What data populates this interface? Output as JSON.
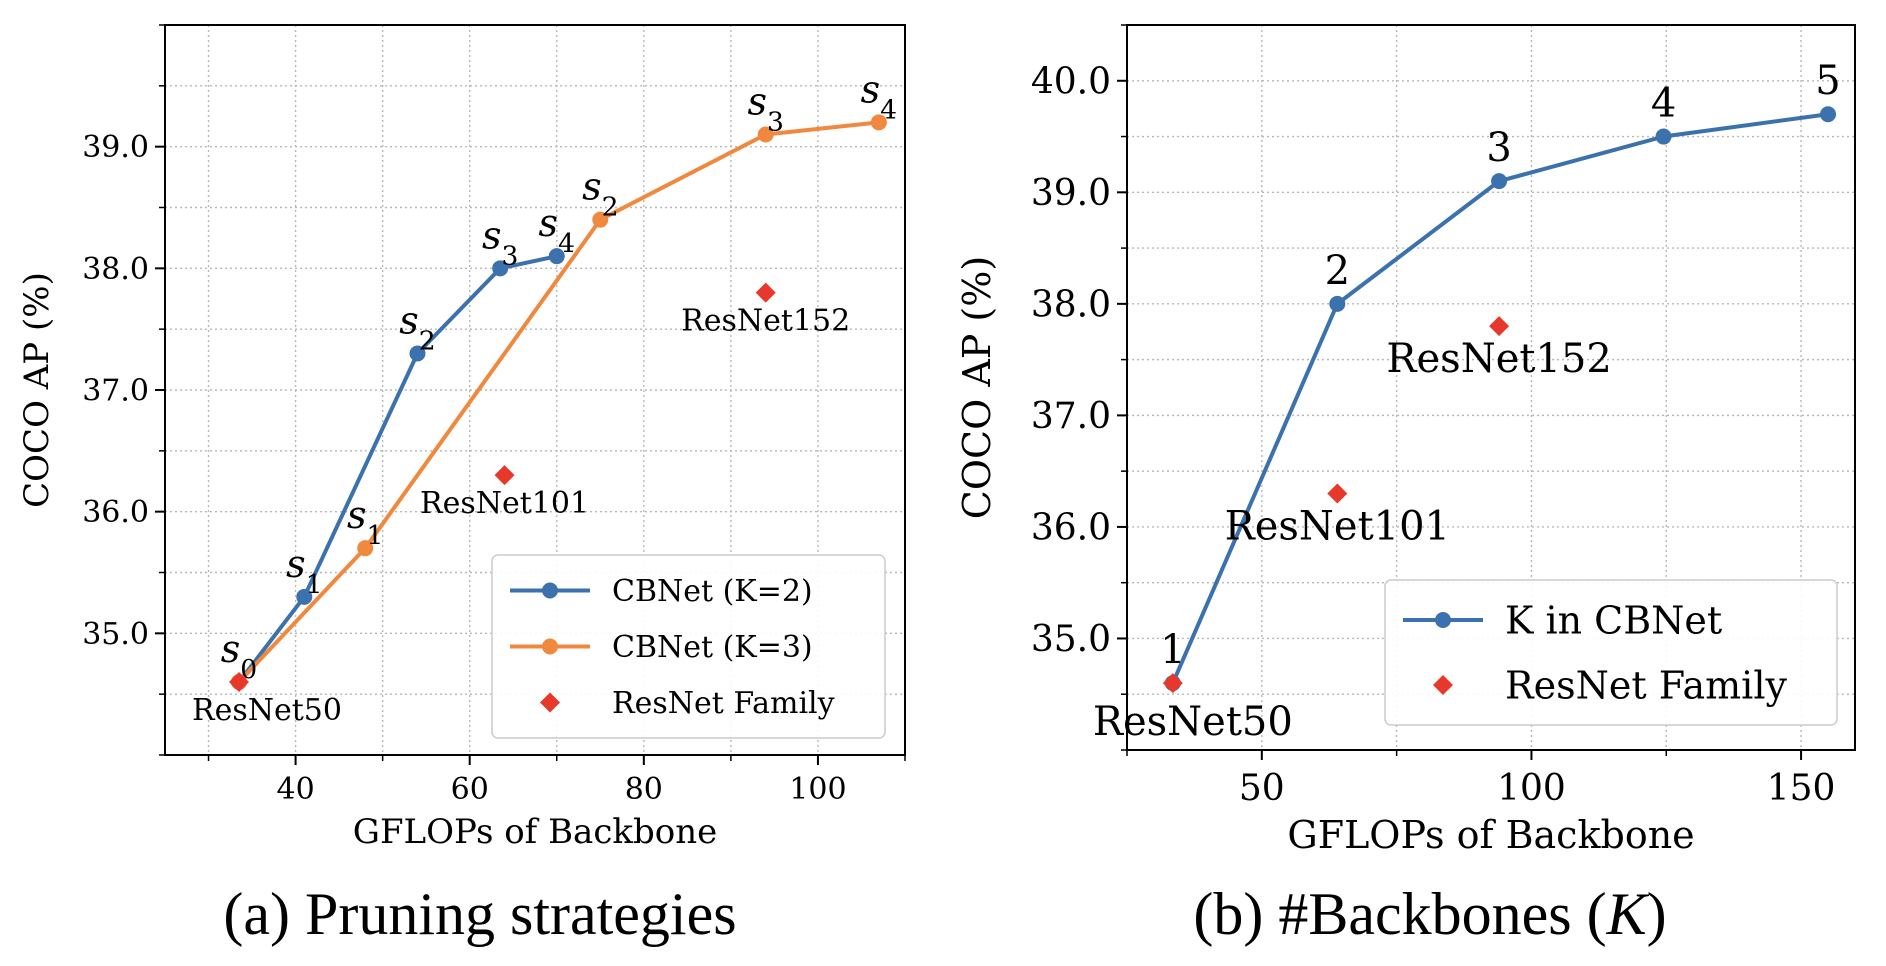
{
  "chart_data": [
    {
      "type": "line",
      "caption": "(a) Pruning strategies",
      "xlabel": "GFLOPs of Backbone",
      "ylabel": "COCO AP (%)",
      "xlim": [
        25,
        110
      ],
      "ylim": [
        34.0,
        40.0
      ],
      "xticks": [
        40,
        60,
        80,
        100
      ],
      "yticks": [
        35.0,
        36.0,
        37.0,
        38.0,
        39.0
      ],
      "grid": true,
      "legend_position": "lower-right",
      "series": [
        {
          "name": "CBNet (K=2)",
          "color": "#3b72ad",
          "marker": "circle",
          "points": [
            {
              "x": 33.5,
              "y": 34.6,
              "label": "s",
              "sub": "0"
            },
            {
              "x": 41,
              "y": 35.3,
              "label": "s",
              "sub": "1"
            },
            {
              "x": 54,
              "y": 37.3,
              "label": "s",
              "sub": "2"
            },
            {
              "x": 63.5,
              "y": 38.0,
              "label": "s",
              "sub": "3"
            },
            {
              "x": 70,
              "y": 38.1,
              "label": "s",
              "sub": "4"
            }
          ]
        },
        {
          "name": "CBNet (K=3)",
          "color": "#f0883e",
          "marker": "circle",
          "points": [
            {
              "x": 33.5,
              "y": 34.6,
              "label": "",
              "sub": ""
            },
            {
              "x": 48,
              "y": 35.7,
              "label": "s",
              "sub": "1"
            },
            {
              "x": 75,
              "y": 38.4,
              "label": "s",
              "sub": "2"
            },
            {
              "x": 94,
              "y": 39.1,
              "label": "s",
              "sub": "3"
            },
            {
              "x": 107,
              "y": 39.2,
              "label": "s",
              "sub": "4"
            }
          ]
        }
      ],
      "scatter": {
        "name": "ResNet Family",
        "color": "#e8372b",
        "marker": "diamond",
        "points": [
          {
            "x": 33.5,
            "y": 34.6,
            "label": "ResNet50"
          },
          {
            "x": 64,
            "y": 36.3,
            "label": "ResNet101"
          },
          {
            "x": 94,
            "y": 37.8,
            "label": "ResNet152"
          }
        ]
      }
    },
    {
      "type": "line",
      "caption": "(b) #Backbones (K)",
      "xlabel": "GFLOPs of Backbone",
      "ylabel": "COCO AP (%)",
      "xlim": [
        25,
        160
      ],
      "ylim": [
        34.0,
        40.5
      ],
      "xticks": [
        50,
        100,
        150
      ],
      "yticks": [
        35.0,
        36.0,
        37.0,
        38.0,
        39.0,
        40.0
      ],
      "grid": true,
      "legend_position": "lower-right",
      "series": [
        {
          "name": "K in CBNet",
          "color": "#3b72ad",
          "marker": "circle",
          "points": [
            {
              "x": 33.5,
              "y": 34.6,
              "label": "1"
            },
            {
              "x": 64,
              "y": 38.0,
              "label": "2"
            },
            {
              "x": 94,
              "y": 39.1,
              "label": "3"
            },
            {
              "x": 124.5,
              "y": 39.5,
              "label": "4"
            },
            {
              "x": 155,
              "y": 39.7,
              "label": "5"
            }
          ]
        }
      ],
      "scatter": {
        "name": "ResNet Family",
        "color": "#e8372b",
        "marker": "diamond",
        "points": [
          {
            "x": 33.5,
            "y": 34.6,
            "label": "ResNet50"
          },
          {
            "x": 64,
            "y": 36.3,
            "label": "ResNet101"
          },
          {
            "x": 94,
            "y": 37.8,
            "label": "ResNet152"
          }
        ]
      }
    }
  ]
}
